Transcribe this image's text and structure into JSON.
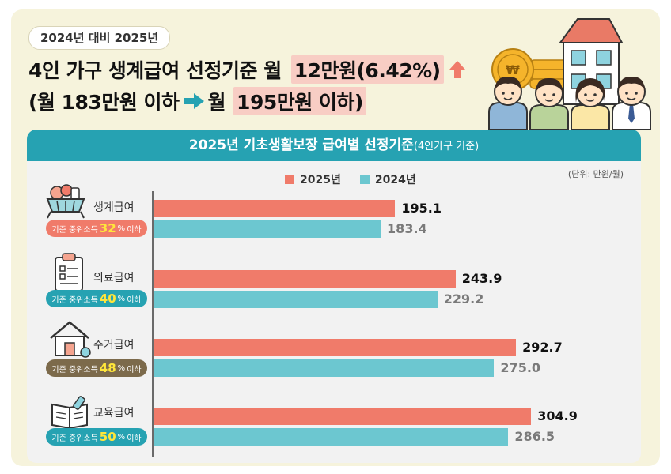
{
  "header": {
    "pill": "2024년 대비 2025년",
    "line1_prefix": "4인 가구 생계급여 선정기준 월",
    "line1_highlight": "12만원(6.42%)",
    "line2_open": "(월 183만원 이하",
    "line2_mid": "월",
    "line2_highlight": "195만원 이하)"
  },
  "panel": {
    "title": "2025년 기초생활보장 급여별 선정기준",
    "title_sub": "(4인가구 기준)",
    "unit": "(단위: 만원/월)"
  },
  "colors": {
    "y2025": "#f07b6a",
    "y2024": "#6cc7d0",
    "teal": "#26a2b2",
    "gold": "#f5b42b"
  },
  "chart_data": {
    "type": "bar",
    "orientation": "horizontal",
    "categories": [
      "생계급여",
      "의료급여",
      "주거급여",
      "교육급여"
    ],
    "series": [
      {
        "name": "2025년",
        "values": [
          195.1,
          243.9,
          292.7,
          304.9
        ],
        "labels": [
          "195.1",
          "243.9",
          "292.7",
          "304.9"
        ]
      },
      {
        "name": "2024년",
        "values": [
          183.4,
          229.2,
          275.0,
          286.5
        ],
        "labels": [
          "183.4",
          "229.2",
          "275.0",
          "286.5"
        ]
      }
    ],
    "xlim": [
      0,
      345
    ],
    "legend_position": "top-center",
    "grid": false
  },
  "badges": [
    {
      "prefix": "기준 중위소득",
      "pct": "32",
      "unit": "%",
      "suffix": "이하",
      "color": "#f07b6a"
    },
    {
      "prefix": "기준 중위소득",
      "pct": "40",
      "unit": "%",
      "suffix": "이하",
      "color": "#26a2b2"
    },
    {
      "prefix": "기준 중위소득",
      "pct": "48",
      "unit": "%",
      "suffix": "이하",
      "color": "#7c6a4b"
    },
    {
      "prefix": "기준 중위소득",
      "pct": "50",
      "unit": "%",
      "suffix": "이하",
      "color": "#26a2b2"
    }
  ],
  "icons": [
    "food-basket-icon",
    "medical-chart-icon",
    "house-icon",
    "books-icon",
    "coin-stack-icon",
    "family-icon"
  ]
}
